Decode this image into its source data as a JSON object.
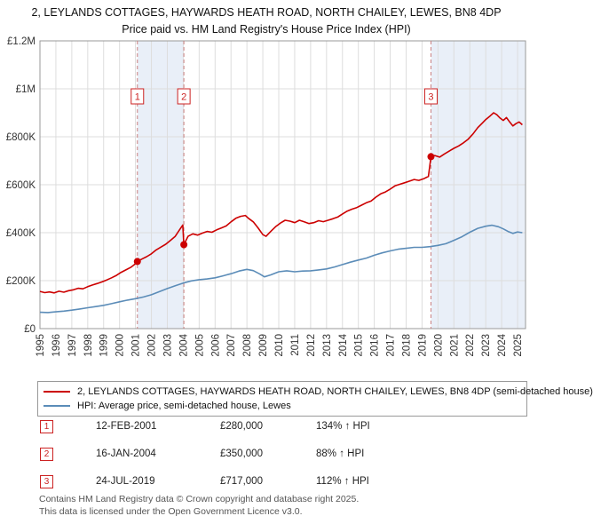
{
  "title": "2, LEYLANDS COTTAGES, HAYWARDS HEATH ROAD, NORTH CHAILEY, LEWES, BN8 4DP",
  "subtitle": "Price paid vs. HM Land Registry's House Price Index (HPI)",
  "chart_data": {
    "type": "line",
    "x_range": [
      1995,
      2025.5
    ],
    "ylim": [
      0,
      1200000
    ],
    "x_ticks": [
      1995,
      1996,
      1997,
      1998,
      1999,
      2000,
      2001,
      2002,
      2003,
      2004,
      2005,
      2006,
      2007,
      2008,
      2009,
      2010,
      2011,
      2012,
      2013,
      2014,
      2015,
      2016,
      2017,
      2018,
      2019,
      2020,
      2021,
      2022,
      2023,
      2024,
      2025
    ],
    "y_ticks": [
      {
        "value": 0,
        "label": "£0"
      },
      {
        "value": 200000,
        "label": "£200K"
      },
      {
        "value": 400000,
        "label": "£400K"
      },
      {
        "value": 600000,
        "label": "£600K"
      },
      {
        "value": 800000,
        "label": "£800K"
      },
      {
        "value": 1000000,
        "label": "£1M"
      },
      {
        "value": 1200000,
        "label": "£1.2M"
      }
    ],
    "grid_on": true,
    "grid_color": "#dddddd",
    "axis_color": "#999999",
    "band_color": "#e9eff8",
    "dashed_line_color": "#c98080",
    "marker_accent_color": "#cc2222",
    "bands": [
      [
        2001.12,
        2004.04
      ],
      [
        2019.56,
        2025.5
      ]
    ],
    "series": [
      {
        "name": "price-paid",
        "color": "#cc0000",
        "points": [
          [
            1995,
            155000
          ],
          [
            1995.3,
            150000
          ],
          [
            1995.6,
            153000
          ],
          [
            1995.9,
            149000
          ],
          [
            1996.2,
            156000
          ],
          [
            1996.5,
            152000
          ],
          [
            1996.8,
            158000
          ],
          [
            1997.1,
            162000
          ],
          [
            1997.4,
            168000
          ],
          [
            1997.7,
            166000
          ],
          [
            1998,
            175000
          ],
          [
            1998.3,
            182000
          ],
          [
            1998.6,
            188000
          ],
          [
            1998.9,
            195000
          ],
          [
            1999.2,
            203000
          ],
          [
            1999.5,
            212000
          ],
          [
            1999.8,
            222000
          ],
          [
            2000.1,
            235000
          ],
          [
            2000.4,
            245000
          ],
          [
            2000.7,
            255000
          ],
          [
            2000.9,
            265000
          ],
          [
            2001.12,
            280000
          ],
          [
            2001.4,
            290000
          ],
          [
            2001.7,
            300000
          ],
          [
            2002,
            312000
          ],
          [
            2002.3,
            328000
          ],
          [
            2002.6,
            340000
          ],
          [
            2002.9,
            352000
          ],
          [
            2003.2,
            368000
          ],
          [
            2003.5,
            385000
          ],
          [
            2003.8,
            415000
          ],
          [
            2003.97,
            432000
          ],
          [
            2004.04,
            350000
          ],
          [
            2004.3,
            385000
          ],
          [
            2004.6,
            395000
          ],
          [
            2004.9,
            390000
          ],
          [
            2005.2,
            398000
          ],
          [
            2005.5,
            405000
          ],
          [
            2005.8,
            402000
          ],
          [
            2006.1,
            412000
          ],
          [
            2006.4,
            420000
          ],
          [
            2006.7,
            428000
          ],
          [
            2007,
            445000
          ],
          [
            2007.3,
            460000
          ],
          [
            2007.6,
            468000
          ],
          [
            2007.9,
            472000
          ],
          [
            2008.1,
            460000
          ],
          [
            2008.4,
            445000
          ],
          [
            2008.7,
            420000
          ],
          [
            2009,
            392000
          ],
          [
            2009.2,
            385000
          ],
          [
            2009.5,
            405000
          ],
          [
            2009.8,
            425000
          ],
          [
            2010.1,
            440000
          ],
          [
            2010.4,
            452000
          ],
          [
            2010.7,
            448000
          ],
          [
            2011,
            442000
          ],
          [
            2011.3,
            452000
          ],
          [
            2011.6,
            445000
          ],
          [
            2011.9,
            438000
          ],
          [
            2012.2,
            442000
          ],
          [
            2012.5,
            450000
          ],
          [
            2012.8,
            446000
          ],
          [
            2013.1,
            452000
          ],
          [
            2013.4,
            458000
          ],
          [
            2013.7,
            465000
          ],
          [
            2014,
            478000
          ],
          [
            2014.3,
            490000
          ],
          [
            2014.6,
            498000
          ],
          [
            2014.9,
            505000
          ],
          [
            2015.2,
            515000
          ],
          [
            2015.5,
            525000
          ],
          [
            2015.8,
            532000
          ],
          [
            2016.1,
            548000
          ],
          [
            2016.4,
            562000
          ],
          [
            2016.7,
            570000
          ],
          [
            2017,
            582000
          ],
          [
            2017.3,
            595000
          ],
          [
            2017.6,
            602000
          ],
          [
            2017.9,
            608000
          ],
          [
            2018.2,
            615000
          ],
          [
            2018.5,
            622000
          ],
          [
            2018.8,
            618000
          ],
          [
            2019.1,
            625000
          ],
          [
            2019.4,
            635000
          ],
          [
            2019.56,
            717000
          ],
          [
            2019.8,
            722000
          ],
          [
            2020.1,
            715000
          ],
          [
            2020.4,
            728000
          ],
          [
            2020.7,
            740000
          ],
          [
            2021,
            752000
          ],
          [
            2021.3,
            762000
          ],
          [
            2021.6,
            775000
          ],
          [
            2021.9,
            790000
          ],
          [
            2022.2,
            812000
          ],
          [
            2022.5,
            838000
          ],
          [
            2022.8,
            858000
          ],
          [
            2023,
            872000
          ],
          [
            2023.3,
            888000
          ],
          [
            2023.5,
            900000
          ],
          [
            2023.7,
            892000
          ],
          [
            2023.9,
            878000
          ],
          [
            2024.1,
            868000
          ],
          [
            2024.3,
            880000
          ],
          [
            2024.5,
            862000
          ],
          [
            2024.7,
            845000
          ],
          [
            2024.9,
            855000
          ],
          [
            2025.1,
            862000
          ],
          [
            2025.3,
            850000
          ]
        ]
      },
      {
        "name": "hpi",
        "color": "#5b8cb8",
        "points": [
          [
            1995,
            68000
          ],
          [
            1995.5,
            67000
          ],
          [
            1996,
            70000
          ],
          [
            1996.5,
            73000
          ],
          [
            1997,
            77000
          ],
          [
            1997.5,
            82000
          ],
          [
            1998,
            87000
          ],
          [
            1998.5,
            92000
          ],
          [
            1999,
            97000
          ],
          [
            1999.5,
            104000
          ],
          [
            2000,
            112000
          ],
          [
            2000.5,
            119000
          ],
          [
            2001,
            125000
          ],
          [
            2001.5,
            132000
          ],
          [
            2002,
            141000
          ],
          [
            2002.5,
            154000
          ],
          [
            2003,
            167000
          ],
          [
            2003.5,
            179000
          ],
          [
            2004,
            190000
          ],
          [
            2004.5,
            199000
          ],
          [
            2005,
            204000
          ],
          [
            2005.5,
            207000
          ],
          [
            2006,
            212000
          ],
          [
            2006.5,
            220000
          ],
          [
            2007,
            229000
          ],
          [
            2007.5,
            240000
          ],
          [
            2008,
            247000
          ],
          [
            2008.4,
            242000
          ],
          [
            2008.8,
            228000
          ],
          [
            2009.1,
            216000
          ],
          [
            2009.5,
            224000
          ],
          [
            2010,
            237000
          ],
          [
            2010.5,
            241000
          ],
          [
            2011,
            237000
          ],
          [
            2011.5,
            240000
          ],
          [
            2012,
            241000
          ],
          [
            2012.5,
            245000
          ],
          [
            2013,
            249000
          ],
          [
            2013.5,
            257000
          ],
          [
            2014,
            267000
          ],
          [
            2014.5,
            277000
          ],
          [
            2015,
            286000
          ],
          [
            2015.5,
            294000
          ],
          [
            2016,
            306000
          ],
          [
            2016.5,
            316000
          ],
          [
            2017,
            324000
          ],
          [
            2017.5,
            331000
          ],
          [
            2018,
            335000
          ],
          [
            2018.5,
            339000
          ],
          [
            2019,
            339000
          ],
          [
            2019.5,
            342000
          ],
          [
            2020,
            347000
          ],
          [
            2020.5,
            354000
          ],
          [
            2021,
            368000
          ],
          [
            2021.5,
            383000
          ],
          [
            2022,
            402000
          ],
          [
            2022.5,
            418000
          ],
          [
            2023,
            427000
          ],
          [
            2023.4,
            431000
          ],
          [
            2023.8,
            425000
          ],
          [
            2024.1,
            416000
          ],
          [
            2024.4,
            405000
          ],
          [
            2024.7,
            397000
          ],
          [
            2025,
            403000
          ],
          [
            2025.3,
            400000
          ]
        ]
      }
    ],
    "markers": [
      {
        "label": "1",
        "x": 2001.12,
        "y": 280000
      },
      {
        "label": "2",
        "x": 2004.04,
        "y": 350000
      },
      {
        "label": "3",
        "x": 2019.56,
        "y": 717000
      }
    ]
  },
  "legend": [
    {
      "label": "2, LEYLANDS COTTAGES, HAYWARDS HEATH ROAD, NORTH CHAILEY, LEWES, BN8 4DP (semi-detached house)",
      "color": "#cc0000"
    },
    {
      "label": "HPI: Average price, semi-detached house, Lewes",
      "color": "#5b8cb8"
    }
  ],
  "transactions": [
    {
      "number": "1",
      "date": "12-FEB-2001",
      "price": "£280,000",
      "hpi_change": "134% ↑ HPI"
    },
    {
      "number": "2",
      "date": "16-JAN-2004",
      "price": "£350,000",
      "hpi_change": "88% ↑ HPI"
    },
    {
      "number": "3",
      "date": "24-JUL-2019",
      "price": "£717,000",
      "hpi_change": "112% ↑ HPI"
    }
  ],
  "footer": {
    "line1": "Contains HM Land Registry data © Crown copyright and database right 2025.",
    "line2": "This data is licensed under the Open Government Licence v3.0."
  }
}
